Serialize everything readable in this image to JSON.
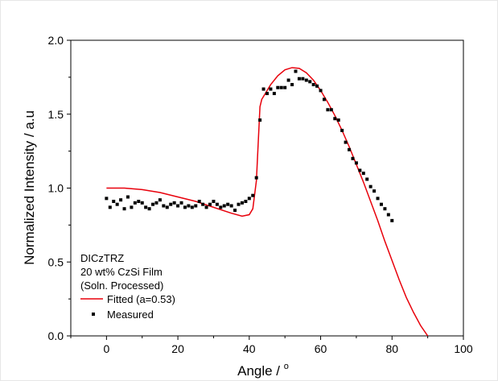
{
  "chart_data": {
    "type": "scatter",
    "xlabel": "Angle / ",
    "xlabel_superscript": "o",
    "ylabel": "Normalized Intensity / a.u",
    "xlim": [
      -10,
      100
    ],
    "ylim": [
      0.0,
      2.0
    ],
    "xticks": [
      "0",
      "20",
      "40",
      "60",
      "80",
      "100"
    ],
    "yticks": [
      "0.0",
      "0.5",
      "1.0",
      "1.5",
      "2.0"
    ],
    "xtick_values": [
      0,
      20,
      40,
      60,
      80,
      100
    ],
    "ytick_values": [
      0.0,
      0.5,
      1.0,
      1.5,
      2.0
    ],
    "annotation_lines": [
      "DICzTRZ",
      "20 wt% CzSi Film",
      "(Soln. Processed)"
    ],
    "legend_position": "bottom-left",
    "series": [
      {
        "name": "Fitted (a=0.53)",
        "kind": "line",
        "color": "#e8000b",
        "x": [
          0,
          5,
          10,
          15,
          20,
          25,
          30,
          35,
          38,
          40,
          41,
          42,
          42.5,
          43,
          43.5,
          44,
          45,
          46,
          48,
          50,
          52,
          54,
          56,
          58,
          60,
          62,
          64,
          66,
          68,
          70,
          72,
          74,
          76,
          78,
          80,
          82,
          84,
          86,
          88,
          90
        ],
        "y": [
          1.0,
          1.0,
          0.99,
          0.97,
          0.94,
          0.91,
          0.87,
          0.83,
          0.81,
          0.82,
          0.86,
          1.05,
          1.3,
          1.55,
          1.6,
          1.62,
          1.66,
          1.7,
          1.76,
          1.8,
          1.815,
          1.81,
          1.78,
          1.73,
          1.66,
          1.58,
          1.49,
          1.39,
          1.28,
          1.16,
          1.04,
          0.91,
          0.78,
          0.64,
          0.51,
          0.38,
          0.26,
          0.16,
          0.07,
          0.0
        ]
      },
      {
        "name": "Measured",
        "kind": "scatter",
        "color": "#000000",
        "x": [
          0,
          1,
          2,
          3,
          4,
          5,
          6,
          7,
          8,
          9,
          10,
          11,
          12,
          13,
          14,
          15,
          16,
          17,
          18,
          19,
          20,
          21,
          22,
          23,
          24,
          25,
          26,
          27,
          28,
          29,
          30,
          31,
          32,
          33,
          34,
          35,
          36,
          37,
          38,
          39,
          40,
          41,
          42,
          43,
          44,
          45,
          46,
          47,
          48,
          49,
          50,
          51,
          52,
          53,
          54,
          55,
          56,
          57,
          58,
          59,
          60,
          61,
          62,
          63,
          64,
          65,
          66,
          67,
          68,
          69,
          70,
          71,
          72,
          73,
          74,
          75,
          76,
          77,
          78,
          79,
          80
        ],
        "y": [
          0.93,
          0.87,
          0.91,
          0.89,
          0.92,
          0.86,
          0.94,
          0.87,
          0.9,
          0.91,
          0.9,
          0.87,
          0.86,
          0.89,
          0.9,
          0.92,
          0.88,
          0.87,
          0.89,
          0.9,
          0.88,
          0.9,
          0.87,
          0.88,
          0.87,
          0.88,
          0.91,
          0.89,
          0.87,
          0.89,
          0.91,
          0.89,
          0.87,
          0.88,
          0.89,
          0.88,
          0.85,
          0.89,
          0.9,
          0.91,
          0.93,
          0.95,
          1.07,
          1.46,
          1.67,
          1.64,
          1.67,
          1.64,
          1.68,
          1.68,
          1.68,
          1.73,
          1.7,
          1.79,
          1.74,
          1.74,
          1.73,
          1.72,
          1.7,
          1.69,
          1.66,
          1.6,
          1.53,
          1.53,
          1.47,
          1.46,
          1.39,
          1.31,
          1.26,
          1.2,
          1.17,
          1.12,
          1.1,
          1.06,
          1.01,
          0.98,
          0.93,
          0.89,
          0.86,
          0.82,
          0.78
        ]
      }
    ]
  }
}
